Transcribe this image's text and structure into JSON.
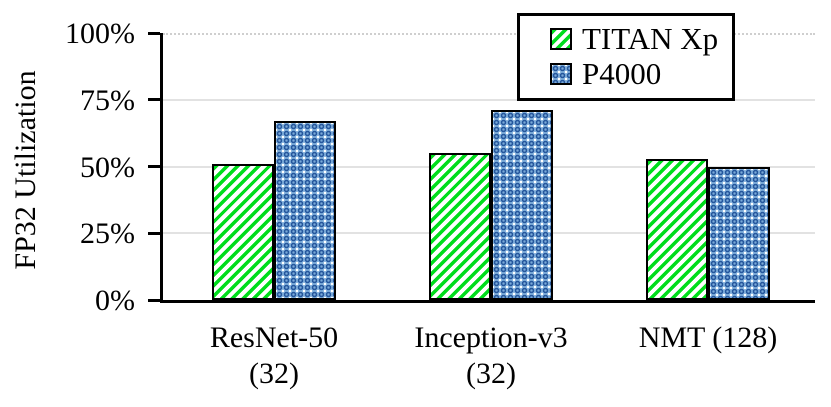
{
  "chart_data": {
    "type": "bar",
    "title": "",
    "xlabel": "",
    "ylabel": "FP32 Utilization",
    "ylim": [
      0,
      100
    ],
    "yticks": [
      "0%",
      "25%",
      "50%",
      "75%",
      "100%"
    ],
    "grid": true,
    "gridline_style": {
      "solid_at": [
        25,
        50,
        75
      ],
      "dotted_at": [
        100
      ]
    },
    "legend_position": "top-right",
    "categories": [
      {
        "line1": "ResNet-50",
        "line2": "(32)"
      },
      {
        "line1": "Inception-v3",
        "line2": "(32)"
      },
      {
        "line1": "NMT (128)",
        "line2": ""
      }
    ],
    "series": [
      {
        "name": "TITAN Xp",
        "values": [
          51,
          55,
          53
        ],
        "pattern": "diagonal-hatch",
        "color": "#00dd1c"
      },
      {
        "name": "P4000",
        "values": [
          67,
          71,
          50
        ],
        "pattern": "circle-hatch",
        "color": "#7aaad8"
      }
    ]
  },
  "colors": {
    "titan_green": "#00dd1c",
    "p4000_blue_base": "#7aaad8",
    "p4000_blue_dark": "#26579d",
    "gridline": "#e2e2e2",
    "gridline_dotted": "#cfcfcf",
    "axis": "#000000"
  }
}
